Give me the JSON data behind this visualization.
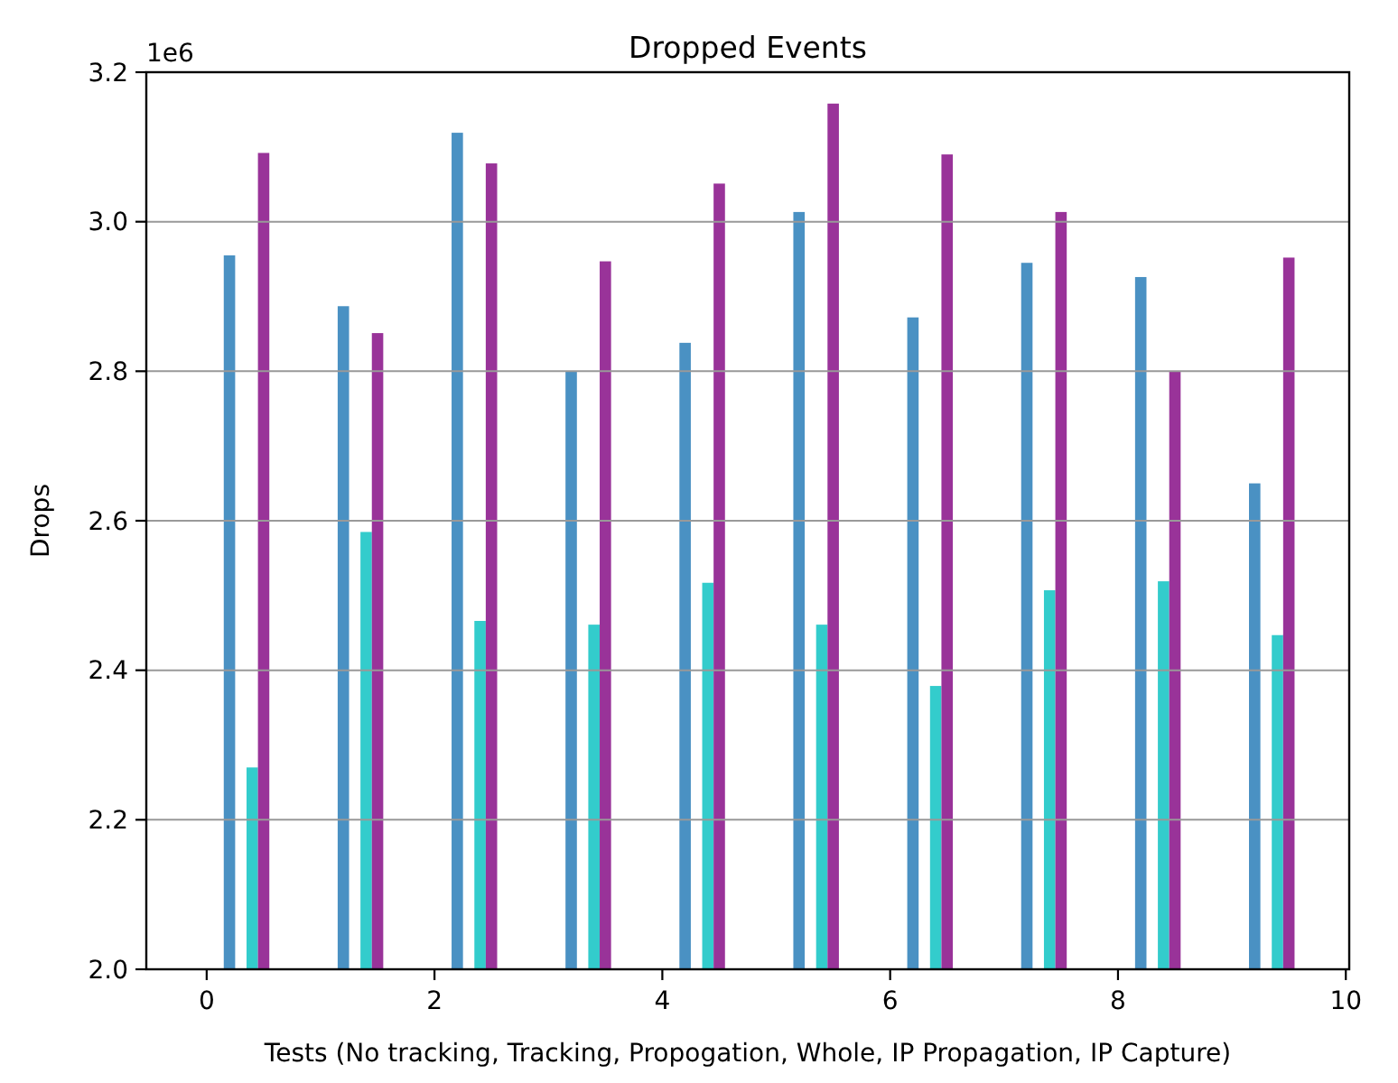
{
  "chart_data": {
    "type": "bar",
    "title": "Dropped Events",
    "xlabel": "Tests (No tracking, Tracking, Propogation, Whole, IP Propagation, IP Capture)",
    "ylabel": "Drops",
    "annotations": [
      "1e6"
    ],
    "series": [
      {
        "color": "#4a91c3",
        "x": [
          0.2,
          1.2,
          2.2,
          3.2,
          4.2,
          5.2,
          6.2,
          7.2,
          8.2,
          9.2
        ],
        "values": [
          2.955,
          2.887,
          3.119,
          2.8,
          2.838,
          3.013,
          2.872,
          2.945,
          2.926,
          2.65
        ]
      },
      {
        "color": "#33cccc",
        "x": [
          0.4,
          1.4,
          2.4,
          3.4,
          4.4,
          5.4,
          6.4,
          7.4,
          8.4,
          9.4
        ],
        "values": [
          2.27,
          2.585,
          2.466,
          2.461,
          2.517,
          2.461,
          2.379,
          2.507,
          2.519,
          2.447
        ]
      },
      {
        "color": "#993399",
        "x": [
          0.5,
          1.5,
          2.5,
          3.5,
          4.5,
          5.5,
          6.5,
          7.5,
          8.5,
          9.5
        ],
        "values": [
          3.092,
          2.851,
          3.078,
          2.947,
          3.051,
          3.158,
          3.09,
          3.013,
          2.8,
          2.952
        ]
      }
    ],
    "xlim": [
      -0.53,
      10.03
    ],
    "xticks": [
      0,
      2,
      4,
      6,
      8,
      10
    ],
    "ylim": [
      2.0,
      3.2
    ],
    "yticks": [
      {
        "value": 2.0,
        "label": "2.0"
      },
      2.2,
      2.4,
      2.6,
      2.8,
      {
        "value": 3.0,
        "label": "3.0"
      },
      3.2
    ],
    "grid": "y"
  }
}
